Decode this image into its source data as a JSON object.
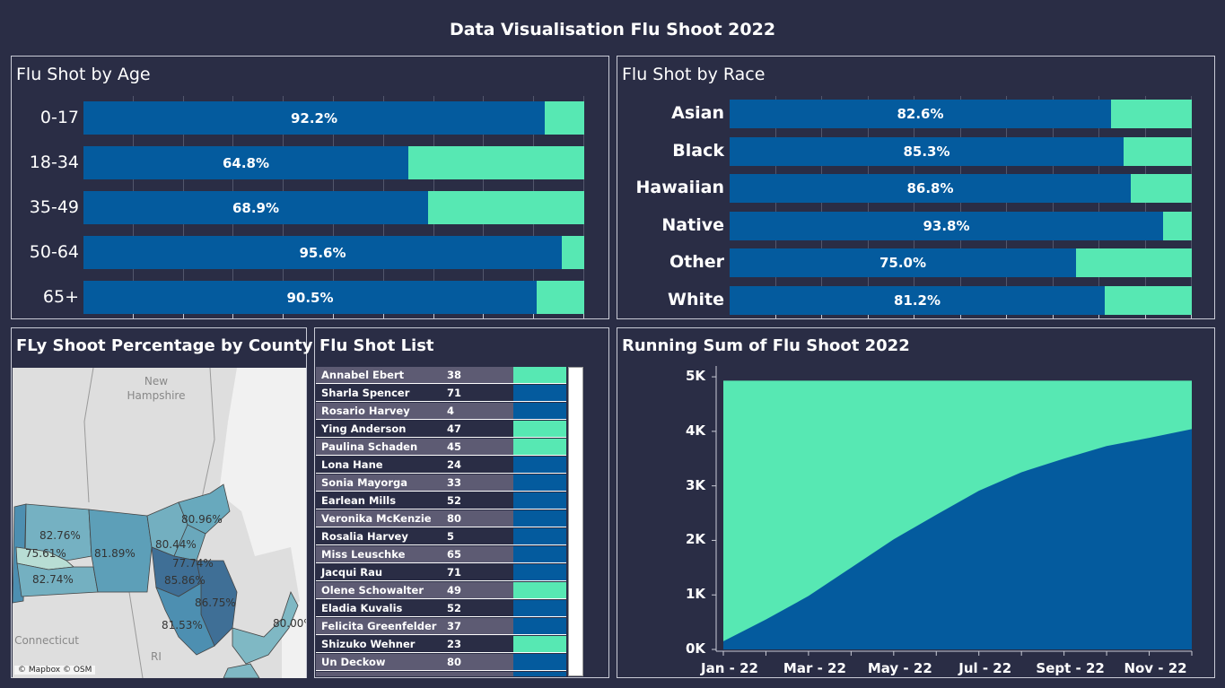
{
  "dashboard_title": "Data Visualisation Flu Shoot 2022",
  "colors": {
    "background": "#2a2d45",
    "vaccinated": "#045b9e",
    "remaining": "#57e8b3"
  },
  "age_panel": {
    "title": "Flu Shot by Age",
    "chart_data": {
      "type": "bar",
      "orientation": "horizontal",
      "stacked_percent": true,
      "categories": [
        "0-17",
        "18-34",
        "35-49",
        "50-64",
        "65+"
      ],
      "values": [
        92.2,
        64.8,
        68.9,
        95.6,
        90.5
      ],
      "labels": [
        "92.2%",
        "64.8%",
        "68.9%",
        "95.6%",
        "90.5%"
      ],
      "xlim": [
        0,
        100
      ],
      "grid": true
    }
  },
  "race_panel": {
    "title": "Flu Shot by Race",
    "chart_data": {
      "type": "bar",
      "orientation": "horizontal",
      "stacked_percent": true,
      "categories": [
        "Asian",
        "Black",
        "Hawaiian",
        "Native",
        "Other",
        "White"
      ],
      "values": [
        82.6,
        85.3,
        86.8,
        93.8,
        75.0,
        81.2
      ],
      "labels": [
        "82.6%",
        "85.3%",
        "86.8%",
        "93.8%",
        "75.0%",
        "81.2%"
      ],
      "xlim": [
        0,
        100
      ],
      "grid": true
    }
  },
  "county_panel": {
    "title": "FLy Shoot Percentage by County",
    "places": [
      "New\nHampshire",
      "Connecticut",
      "RI"
    ],
    "county_labels": [
      "82.76%",
      "75.61%",
      "82.74%",
      "81.89%",
      "80.44%",
      "80.96%",
      "77.74%",
      "85.86%",
      "86.75%",
      "81.53%",
      "80.00%"
    ],
    "attribution": "© Mapbox © OSM"
  },
  "list_panel": {
    "title": "Flu Shot List",
    "rows": [
      {
        "name": "Annabel Ebert",
        "age": "38",
        "status": "remaining"
      },
      {
        "name": "Sharla Spencer",
        "age": "71",
        "status": "vaccinated"
      },
      {
        "name": "Rosario Harvey",
        "age": "4",
        "status": "vaccinated"
      },
      {
        "name": "Ying Anderson",
        "age": "47",
        "status": "remaining"
      },
      {
        "name": "Paulina Schaden",
        "age": "45",
        "status": "remaining"
      },
      {
        "name": "Lona Hane",
        "age": "24",
        "status": "vaccinated"
      },
      {
        "name": "Sonia Mayorga",
        "age": "33",
        "status": "vaccinated"
      },
      {
        "name": "Earlean Mills",
        "age": "52",
        "status": "vaccinated"
      },
      {
        "name": "Veronika McKenzie",
        "age": "80",
        "status": "vaccinated"
      },
      {
        "name": "Rosalia Harvey",
        "age": "5",
        "status": "vaccinated"
      },
      {
        "name": "Miss Leuschke",
        "age": "65",
        "status": "vaccinated"
      },
      {
        "name": "Jacqui Rau",
        "age": "71",
        "status": "vaccinated"
      },
      {
        "name": "Olene Schowalter",
        "age": "49",
        "status": "remaining"
      },
      {
        "name": "Eladia Kuvalis",
        "age": "52",
        "status": "vaccinated"
      },
      {
        "name": "Felicita Greenfelder",
        "age": "37",
        "status": "vaccinated"
      },
      {
        "name": "Shizuko Wehner",
        "age": "23",
        "status": "remaining"
      },
      {
        "name": "Un Deckow",
        "age": "80",
        "status": "vaccinated"
      }
    ]
  },
  "running_panel": {
    "title": "Running Sum of Flu Shoot 2022",
    "chart_data": {
      "type": "area",
      "x": [
        "Jan - 22",
        "Feb - 22",
        "Mar - 22",
        "Apr - 22",
        "May - 22",
        "Jun - 22",
        "Jul - 22",
        "Aug - 22",
        "Sept - 22",
        "Oct - 22",
        "Nov - 22",
        "Dec - 22"
      ],
      "series": [
        {
          "values": [
            150,
            550,
            980,
            1500,
            2020,
            2470,
            2910,
            3250,
            3500,
            3730,
            3880,
            4040
          ]
        },
        {
          "values": [
            4930,
            4930,
            4930,
            4930,
            4930,
            4930,
            4930,
            4930,
            4930,
            4930,
            4930,
            4930
          ]
        }
      ],
      "yticks": [
        "0K",
        "1K",
        "2K",
        "3K",
        "4K",
        "5K"
      ],
      "ytick_values": [
        0,
        1000,
        2000,
        3000,
        4000,
        5000
      ],
      "xtick_labels": [
        "Jan - 22",
        "Mar - 22",
        "May - 22",
        "Jul - 22",
        "Sept - 22",
        "Nov - 22"
      ],
      "ylim": [
        0,
        5100
      ]
    }
  }
}
